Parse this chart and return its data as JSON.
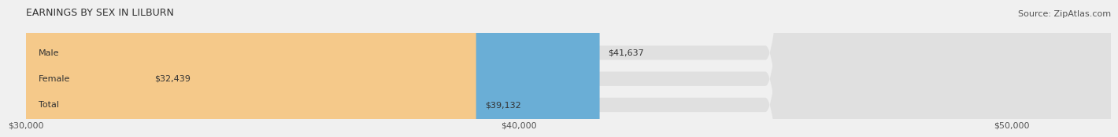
{
  "title": "EARNINGS BY SEX IN LILBURN",
  "source": "Source: ZipAtlas.com",
  "categories": [
    "Male",
    "Female",
    "Total"
  ],
  "values": [
    41637,
    32439,
    39132
  ],
  "colors": [
    "#6aaed6",
    "#f4a7b9",
    "#f5c98a"
  ],
  "xmin": 30000,
  "xmax": 52000,
  "xticks": [
    30000,
    40000,
    50000
  ],
  "xtick_labels": [
    "$30,000",
    "$40,000",
    "$50,000"
  ],
  "value_labels": [
    "$41,637",
    "$32,439",
    "$39,132"
  ],
  "background_color": "#f0f0f0",
  "title_fontsize": 9,
  "source_fontsize": 8,
  "bar_label_fontsize": 8,
  "value_fontsize": 8,
  "tick_fontsize": 8
}
